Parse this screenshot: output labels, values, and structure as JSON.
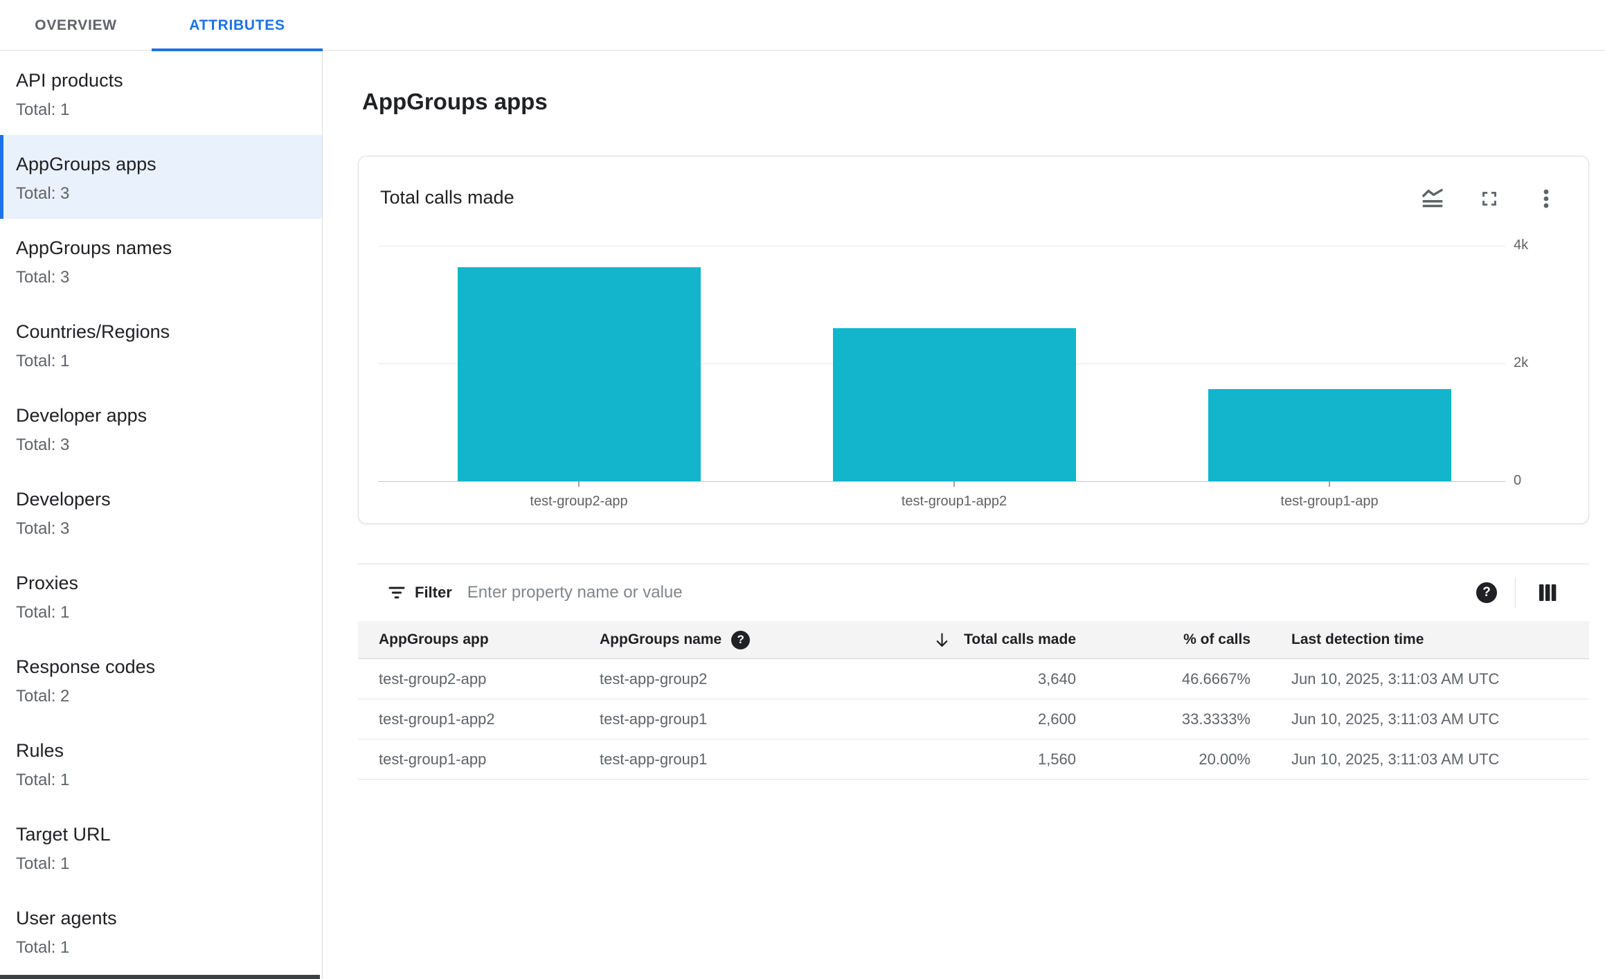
{
  "tabs": {
    "overview": "OVERVIEW",
    "attributes": "ATTRIBUTES"
  },
  "sidebar": {
    "items": [
      {
        "label": "API products",
        "total": "Total: 1",
        "selected": false
      },
      {
        "label": "AppGroups apps",
        "total": "Total: 3",
        "selected": true
      },
      {
        "label": "AppGroups names",
        "total": "Total: 3",
        "selected": false
      },
      {
        "label": "Countries/Regions",
        "total": "Total: 1",
        "selected": false
      },
      {
        "label": "Developer apps",
        "total": "Total: 3",
        "selected": false
      },
      {
        "label": "Developers",
        "total": "Total: 3",
        "selected": false
      },
      {
        "label": "Proxies",
        "total": "Total: 1",
        "selected": false
      },
      {
        "label": "Response codes",
        "total": "Total: 2",
        "selected": false
      },
      {
        "label": "Rules",
        "total": "Total: 1",
        "selected": false
      },
      {
        "label": "Target URL",
        "total": "Total: 1",
        "selected": false
      },
      {
        "label": "User agents",
        "total": "Total: 1",
        "selected": false
      }
    ]
  },
  "main": {
    "title": "AppGroups apps"
  },
  "chart_data": {
    "type": "bar",
    "title": "Total calls made",
    "categories": [
      "test-group2-app",
      "test-group1-app2",
      "test-group1-app"
    ],
    "values": [
      3640,
      2600,
      1560
    ],
    "ylim": [
      0,
      4000
    ],
    "y_ticks": [
      {
        "label": "4k",
        "value": 4000
      },
      {
        "label": "2k",
        "value": 2000
      },
      {
        "label": "0",
        "value": 0
      }
    ],
    "bar_color": "#12b5cb",
    "grid": true,
    "y_axis_side": "right",
    "legend": "none"
  },
  "chart_card": {
    "icons": [
      "chart-type-icon",
      "fullscreen-icon",
      "more-vert-icon"
    ]
  },
  "filter": {
    "label": "Filter",
    "placeholder": "Enter property name or value"
  },
  "table": {
    "columns": [
      "AppGroups app",
      "AppGroups name",
      "Total calls made",
      "% of calls",
      "Last detection time"
    ],
    "sorted_column": "Total calls made",
    "sort_direction": "descending",
    "rows": [
      {
        "app": "test-group2-app",
        "name": "test-app-group2",
        "calls": "3,640",
        "pct": "46.6667%",
        "time": "Jun 10, 2025, 3:11:03 AM UTC"
      },
      {
        "app": "test-group1-app2",
        "name": "test-app-group1",
        "calls": "2,600",
        "pct": "33.3333%",
        "time": "Jun 10, 2025, 3:11:03 AM UTC"
      },
      {
        "app": "test-group1-app",
        "name": "test-app-group1",
        "calls": "1,560",
        "pct": "20.00%",
        "time": "Jun 10, 2025, 3:11:03 AM UTC"
      }
    ],
    "help_icon": "?"
  },
  "colors": {
    "accent_blue": "#1a73e8",
    "selected_bg": "#e9f1fd",
    "bar_teal": "#12b5cb",
    "text_dark": "#202124",
    "text_grey": "#5f6368",
    "axis_text": "#616161",
    "divider": "#dadce0",
    "table_header_bg": "#f4f4f4"
  }
}
